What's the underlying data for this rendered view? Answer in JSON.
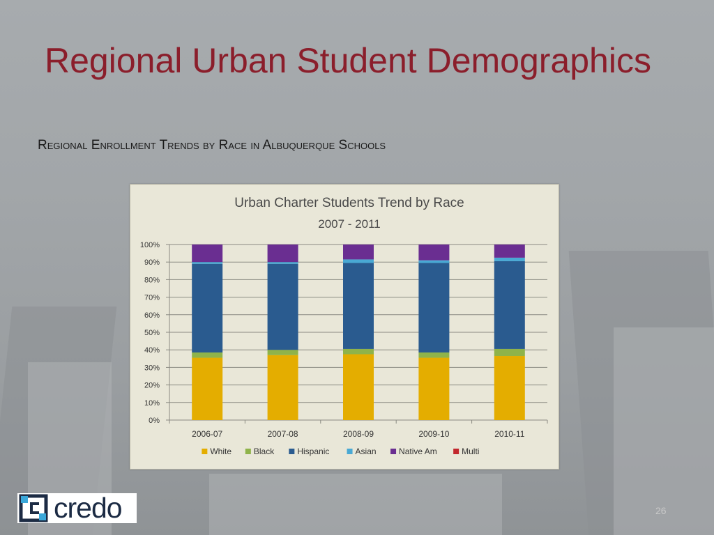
{
  "slide": {
    "title": "Regional Urban Student Demographics",
    "subtitle": "Regional Enrollment Trends by Race in Albuquerque Schools",
    "page_number": "26",
    "logo_text": "credo"
  },
  "chart_data": {
    "type": "bar",
    "stacked": true,
    "title": "Urban Charter Students Trend by Race",
    "subtitle": "2007 - 2011",
    "xlabel": "",
    "ylabel": "",
    "ylim": [
      0,
      100
    ],
    "y_ticks": [
      "0%",
      "10%",
      "20%",
      "30%",
      "40%",
      "50%",
      "60%",
      "70%",
      "80%",
      "90%",
      "100%"
    ],
    "grid": true,
    "legend_position": "bottom",
    "categories": [
      "2006-07",
      "2007-08",
      "2008-09",
      "2009-10",
      "2010-11"
    ],
    "series": [
      {
        "name": "White",
        "color": "#e4ad00",
        "values": [
          35.5,
          37.0,
          37.5,
          35.5,
          36.5
        ]
      },
      {
        "name": "Black",
        "color": "#8fb34a",
        "values": [
          3.0,
          3.0,
          3.0,
          3.0,
          4.0
        ]
      },
      {
        "name": "Hispanic",
        "color": "#2a5b8f",
        "values": [
          50.5,
          49.0,
          49.0,
          51.0,
          50.0
        ]
      },
      {
        "name": "Asian",
        "color": "#49a9d4",
        "values": [
          1.0,
          1.0,
          2.0,
          1.5,
          2.0
        ]
      },
      {
        "name": "Native Am",
        "color": "#6a2e91",
        "values": [
          10.0,
          10.0,
          8.5,
          9.0,
          7.5
        ]
      },
      {
        "name": "Multi",
        "color": "#c2272d",
        "values": [
          0,
          0,
          0,
          0,
          0
        ]
      }
    ]
  }
}
